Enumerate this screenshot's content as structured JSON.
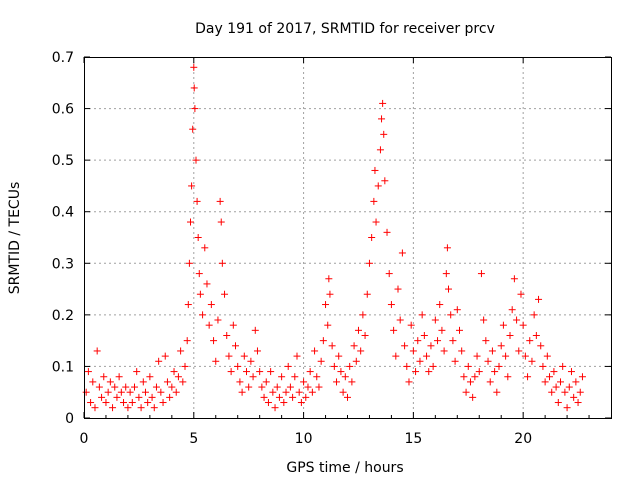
{
  "chart_data": {
    "type": "scatter",
    "title": "Day 191 of 2017, SRMTID for receiver prcv",
    "xlabel": "GPS time / hours",
    "ylabel": "SRMTID / TECUs",
    "xlim": [
      0,
      24
    ],
    "ylim": [
      0,
      0.7
    ],
    "xticks": [
      "0",
      "5",
      "10",
      "15",
      "20"
    ],
    "yticks": [
      "0",
      "0.1",
      "0.2",
      "0.3",
      "0.4",
      "0.5",
      "0.6",
      "0.7"
    ],
    "grid": true,
    "marker": "+",
    "color": "#ff0000",
    "series": [
      {
        "name": "SRMTID",
        "points": [
          [
            0.1,
            0.05
          ],
          [
            0.2,
            0.09
          ],
          [
            0.3,
            0.03
          ],
          [
            0.4,
            0.07
          ],
          [
            0.5,
            0.02
          ],
          [
            0.6,
            0.13
          ],
          [
            0.7,
            0.06
          ],
          [
            0.8,
            0.04
          ],
          [
            0.9,
            0.08
          ],
          [
            1.0,
            0.03
          ],
          [
            1.1,
            0.05
          ],
          [
            1.2,
            0.07
          ],
          [
            1.3,
            0.02
          ],
          [
            1.4,
            0.06
          ],
          [
            1.5,
            0.04
          ],
          [
            1.6,
            0.08
          ],
          [
            1.7,
            0.05
          ],
          [
            1.8,
            0.03
          ],
          [
            1.9,
            0.06
          ],
          [
            2.0,
            0.02
          ],
          [
            2.1,
            0.05
          ],
          [
            2.2,
            0.03
          ],
          [
            2.3,
            0.06
          ],
          [
            2.4,
            0.09
          ],
          [
            2.5,
            0.04
          ],
          [
            2.6,
            0.02
          ],
          [
            2.7,
            0.07
          ],
          [
            2.8,
            0.05
          ],
          [
            2.9,
            0.03
          ],
          [
            3.0,
            0.08
          ],
          [
            3.1,
            0.04
          ],
          [
            3.2,
            0.02
          ],
          [
            3.3,
            0.06
          ],
          [
            3.4,
            0.11
          ],
          [
            3.5,
            0.05
          ],
          [
            3.6,
            0.03
          ],
          [
            3.7,
            0.12
          ],
          [
            3.8,
            0.07
          ],
          [
            3.9,
            0.04
          ],
          [
            4.0,
            0.06
          ],
          [
            4.1,
            0.09
          ],
          [
            4.2,
            0.05
          ],
          [
            4.3,
            0.08
          ],
          [
            4.4,
            0.13
          ],
          [
            4.5,
            0.07
          ],
          [
            4.6,
            0.1
          ],
          [
            4.7,
            0.15
          ],
          [
            4.75,
            0.22
          ],
          [
            4.8,
            0.3
          ],
          [
            4.85,
            0.38
          ],
          [
            4.9,
            0.45
          ],
          [
            4.95,
            0.56
          ],
          [
            5.0,
            0.68
          ],
          [
            5.02,
            0.64
          ],
          [
            5.05,
            0.6
          ],
          [
            5.1,
            0.5
          ],
          [
            5.15,
            0.42
          ],
          [
            5.2,
            0.35
          ],
          [
            5.25,
            0.28
          ],
          [
            5.3,
            0.24
          ],
          [
            5.4,
            0.2
          ],
          [
            5.5,
            0.33
          ],
          [
            5.6,
            0.26
          ],
          [
            5.7,
            0.18
          ],
          [
            5.8,
            0.22
          ],
          [
            5.9,
            0.15
          ],
          [
            6.0,
            0.11
          ],
          [
            6.1,
            0.19
          ],
          [
            6.2,
            0.42
          ],
          [
            6.25,
            0.38
          ],
          [
            6.3,
            0.3
          ],
          [
            6.4,
            0.24
          ],
          [
            6.5,
            0.16
          ],
          [
            6.6,
            0.12
          ],
          [
            6.7,
            0.09
          ],
          [
            6.8,
            0.18
          ],
          [
            6.9,
            0.14
          ],
          [
            7.0,
            0.1
          ],
          [
            7.1,
            0.07
          ],
          [
            7.2,
            0.05
          ],
          [
            7.3,
            0.12
          ],
          [
            7.4,
            0.09
          ],
          [
            7.5,
            0.06
          ],
          [
            7.6,
            0.11
          ],
          [
            7.7,
            0.08
          ],
          [
            7.8,
            0.17
          ],
          [
            7.9,
            0.13
          ],
          [
            8.0,
            0.09
          ],
          [
            8.1,
            0.06
          ],
          [
            8.2,
            0.04
          ],
          [
            8.3,
            0.07
          ],
          [
            8.4,
            0.03
          ],
          [
            8.5,
            0.09
          ],
          [
            8.6,
            0.05
          ],
          [
            8.7,
            0.02
          ],
          [
            8.8,
            0.06
          ],
          [
            8.9,
            0.04
          ],
          [
            9.0,
            0.08
          ],
          [
            9.1,
            0.03
          ],
          [
            9.2,
            0.05
          ],
          [
            9.3,
            0.1
          ],
          [
            9.4,
            0.06
          ],
          [
            9.5,
            0.04
          ],
          [
            9.6,
            0.08
          ],
          [
            9.7,
            0.12
          ],
          [
            9.8,
            0.05
          ],
          [
            9.9,
            0.03
          ],
          [
            10.0,
            0.07
          ],
          [
            10.1,
            0.04
          ],
          [
            10.2,
            0.06
          ],
          [
            10.3,
            0.09
          ],
          [
            10.4,
            0.05
          ],
          [
            10.5,
            0.13
          ],
          [
            10.6,
            0.08
          ],
          [
            10.7,
            0.06
          ],
          [
            10.8,
            0.11
          ],
          [
            10.9,
            0.15
          ],
          [
            11.0,
            0.22
          ],
          [
            11.1,
            0.18
          ],
          [
            11.15,
            0.27
          ],
          [
            11.2,
            0.24
          ],
          [
            11.3,
            0.14
          ],
          [
            11.4,
            0.1
          ],
          [
            11.5,
            0.07
          ],
          [
            11.6,
            0.12
          ],
          [
            11.7,
            0.09
          ],
          [
            11.8,
            0.05
          ],
          [
            11.9,
            0.08
          ],
          [
            12.0,
            0.04
          ],
          [
            12.1,
            0.1
          ],
          [
            12.2,
            0.07
          ],
          [
            12.3,
            0.14
          ],
          [
            12.4,
            0.11
          ],
          [
            12.5,
            0.17
          ],
          [
            12.6,
            0.13
          ],
          [
            12.7,
            0.2
          ],
          [
            12.8,
            0.16
          ],
          [
            12.9,
            0.24
          ],
          [
            13.0,
            0.3
          ],
          [
            13.1,
            0.35
          ],
          [
            13.2,
            0.42
          ],
          [
            13.25,
            0.48
          ],
          [
            13.3,
            0.38
          ],
          [
            13.4,
            0.45
          ],
          [
            13.5,
            0.52
          ],
          [
            13.55,
            0.58
          ],
          [
            13.6,
            0.61
          ],
          [
            13.65,
            0.55
          ],
          [
            13.7,
            0.46
          ],
          [
            13.8,
            0.36
          ],
          [
            13.9,
            0.28
          ],
          [
            14.0,
            0.22
          ],
          [
            14.1,
            0.17
          ],
          [
            14.2,
            0.12
          ],
          [
            14.3,
            0.25
          ],
          [
            14.4,
            0.19
          ],
          [
            14.5,
            0.32
          ],
          [
            14.6,
            0.14
          ],
          [
            14.7,
            0.1
          ],
          [
            14.8,
            0.07
          ],
          [
            14.9,
            0.18
          ],
          [
            15.0,
            0.13
          ],
          [
            15.1,
            0.09
          ],
          [
            15.2,
            0.15
          ],
          [
            15.3,
            0.11
          ],
          [
            15.4,
            0.2
          ],
          [
            15.5,
            0.16
          ],
          [
            15.6,
            0.12
          ],
          [
            15.7,
            0.09
          ],
          [
            15.8,
            0.14
          ],
          [
            15.9,
            0.1
          ],
          [
            16.0,
            0.19
          ],
          [
            16.1,
            0.15
          ],
          [
            16.2,
            0.22
          ],
          [
            16.3,
            0.17
          ],
          [
            16.4,
            0.13
          ],
          [
            16.5,
            0.28
          ],
          [
            16.55,
            0.33
          ],
          [
            16.6,
            0.25
          ],
          [
            16.7,
            0.2
          ],
          [
            16.8,
            0.15
          ],
          [
            16.9,
            0.11
          ],
          [
            17.0,
            0.21
          ],
          [
            17.1,
            0.17
          ],
          [
            17.2,
            0.13
          ],
          [
            17.3,
            0.08
          ],
          [
            17.4,
            0.05
          ],
          [
            17.5,
            0.1
          ],
          [
            17.6,
            0.07
          ],
          [
            17.7,
            0.04
          ],
          [
            17.8,
            0.08
          ],
          [
            17.9,
            0.12
          ],
          [
            18.0,
            0.09
          ],
          [
            18.1,
            0.28
          ],
          [
            18.2,
            0.19
          ],
          [
            18.3,
            0.15
          ],
          [
            18.4,
            0.11
          ],
          [
            18.5,
            0.07
          ],
          [
            18.6,
            0.13
          ],
          [
            18.7,
            0.09
          ],
          [
            18.8,
            0.05
          ],
          [
            18.9,
            0.1
          ],
          [
            19.0,
            0.14
          ],
          [
            19.1,
            0.18
          ],
          [
            19.2,
            0.12
          ],
          [
            19.3,
            0.08
          ],
          [
            19.4,
            0.16
          ],
          [
            19.5,
            0.21
          ],
          [
            19.6,
            0.27
          ],
          [
            19.7,
            0.19
          ],
          [
            19.8,
            0.13
          ],
          [
            19.9,
            0.24
          ],
          [
            20.0,
            0.18
          ],
          [
            20.1,
            0.12
          ],
          [
            20.2,
            0.08
          ],
          [
            20.3,
            0.15
          ],
          [
            20.4,
            0.11
          ],
          [
            20.5,
            0.2
          ],
          [
            20.6,
            0.16
          ],
          [
            20.7,
            0.23
          ],
          [
            20.8,
            0.14
          ],
          [
            20.9,
            0.1
          ],
          [
            21.0,
            0.07
          ],
          [
            21.1,
            0.12
          ],
          [
            21.2,
            0.08
          ],
          [
            21.3,
            0.05
          ],
          [
            21.4,
            0.09
          ],
          [
            21.5,
            0.06
          ],
          [
            21.6,
            0.03
          ],
          [
            21.7,
            0.07
          ],
          [
            21.8,
            0.1
          ],
          [
            21.9,
            0.05
          ],
          [
            22.0,
            0.02
          ],
          [
            22.1,
            0.06
          ],
          [
            22.2,
            0.09
          ],
          [
            22.3,
            0.04
          ],
          [
            22.4,
            0.07
          ],
          [
            22.5,
            0.03
          ],
          [
            22.6,
            0.05
          ],
          [
            22.7,
            0.08
          ]
        ]
      }
    ]
  }
}
